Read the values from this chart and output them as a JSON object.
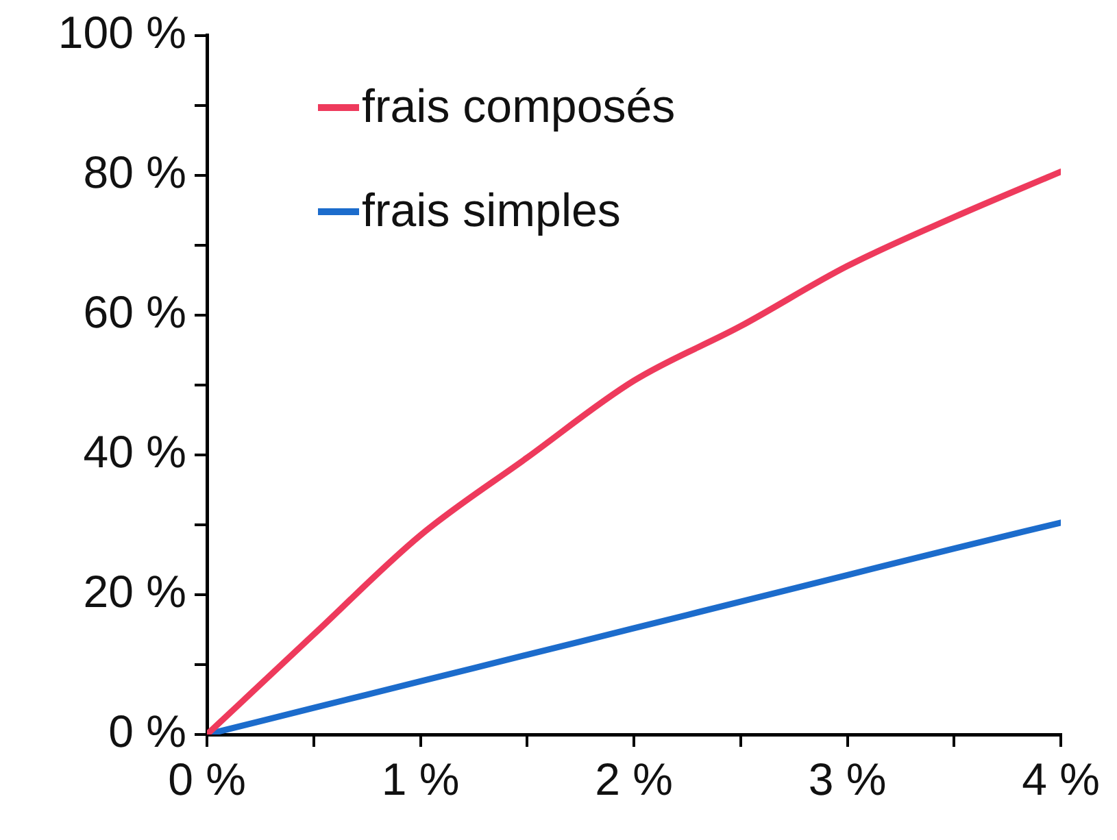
{
  "chart_data": {
    "type": "line",
    "x": [
      0,
      0.5,
      1,
      1.5,
      2,
      2.5,
      3,
      3.5,
      4
    ],
    "series": [
      {
        "name": "frais composés",
        "color": "#ee3a5c",
        "values": [
          0,
          14.3,
          28.5,
          39.6,
          50.6,
          58.4,
          67.0,
          74.0,
          80.5
        ]
      },
      {
        "name": "frais simples",
        "color": "#1c6ccc",
        "values": [
          0,
          3.8,
          7.6,
          11.4,
          15.2,
          19,
          22.8,
          26.6,
          30.3
        ]
      }
    ],
    "xlim": [
      0,
      4
    ],
    "xticks": [
      {
        "value": 0,
        "label": "0 %"
      },
      {
        "value": 0.5,
        "label": null
      },
      {
        "value": 1,
        "label": "1 %"
      },
      {
        "value": 1.5,
        "label": null
      },
      {
        "value": 2,
        "label": "2 %"
      },
      {
        "value": 2.5,
        "label": null
      },
      {
        "value": 3,
        "label": "3 %"
      },
      {
        "value": 3.5,
        "label": null
      },
      {
        "value": 4,
        "label": "4 %"
      }
    ],
    "ylim": [
      0,
      100
    ],
    "yticks": [
      {
        "value": 0,
        "label": "0 %"
      },
      {
        "value": 10,
        "label": null
      },
      {
        "value": 20,
        "label": "20 %"
      },
      {
        "value": 30,
        "label": null
      },
      {
        "value": 40,
        "label": "40 %"
      },
      {
        "value": 50,
        "label": null
      },
      {
        "value": 60,
        "label": "60 %"
      },
      {
        "value": 70,
        "label": null
      },
      {
        "value": 80,
        "label": "80 %"
      },
      {
        "value": 90,
        "label": null
      },
      {
        "value": 100,
        "label": "100 %"
      }
    ],
    "grid": false,
    "legend": "top left",
    "marker": "none",
    "line_style": "solid"
  }
}
